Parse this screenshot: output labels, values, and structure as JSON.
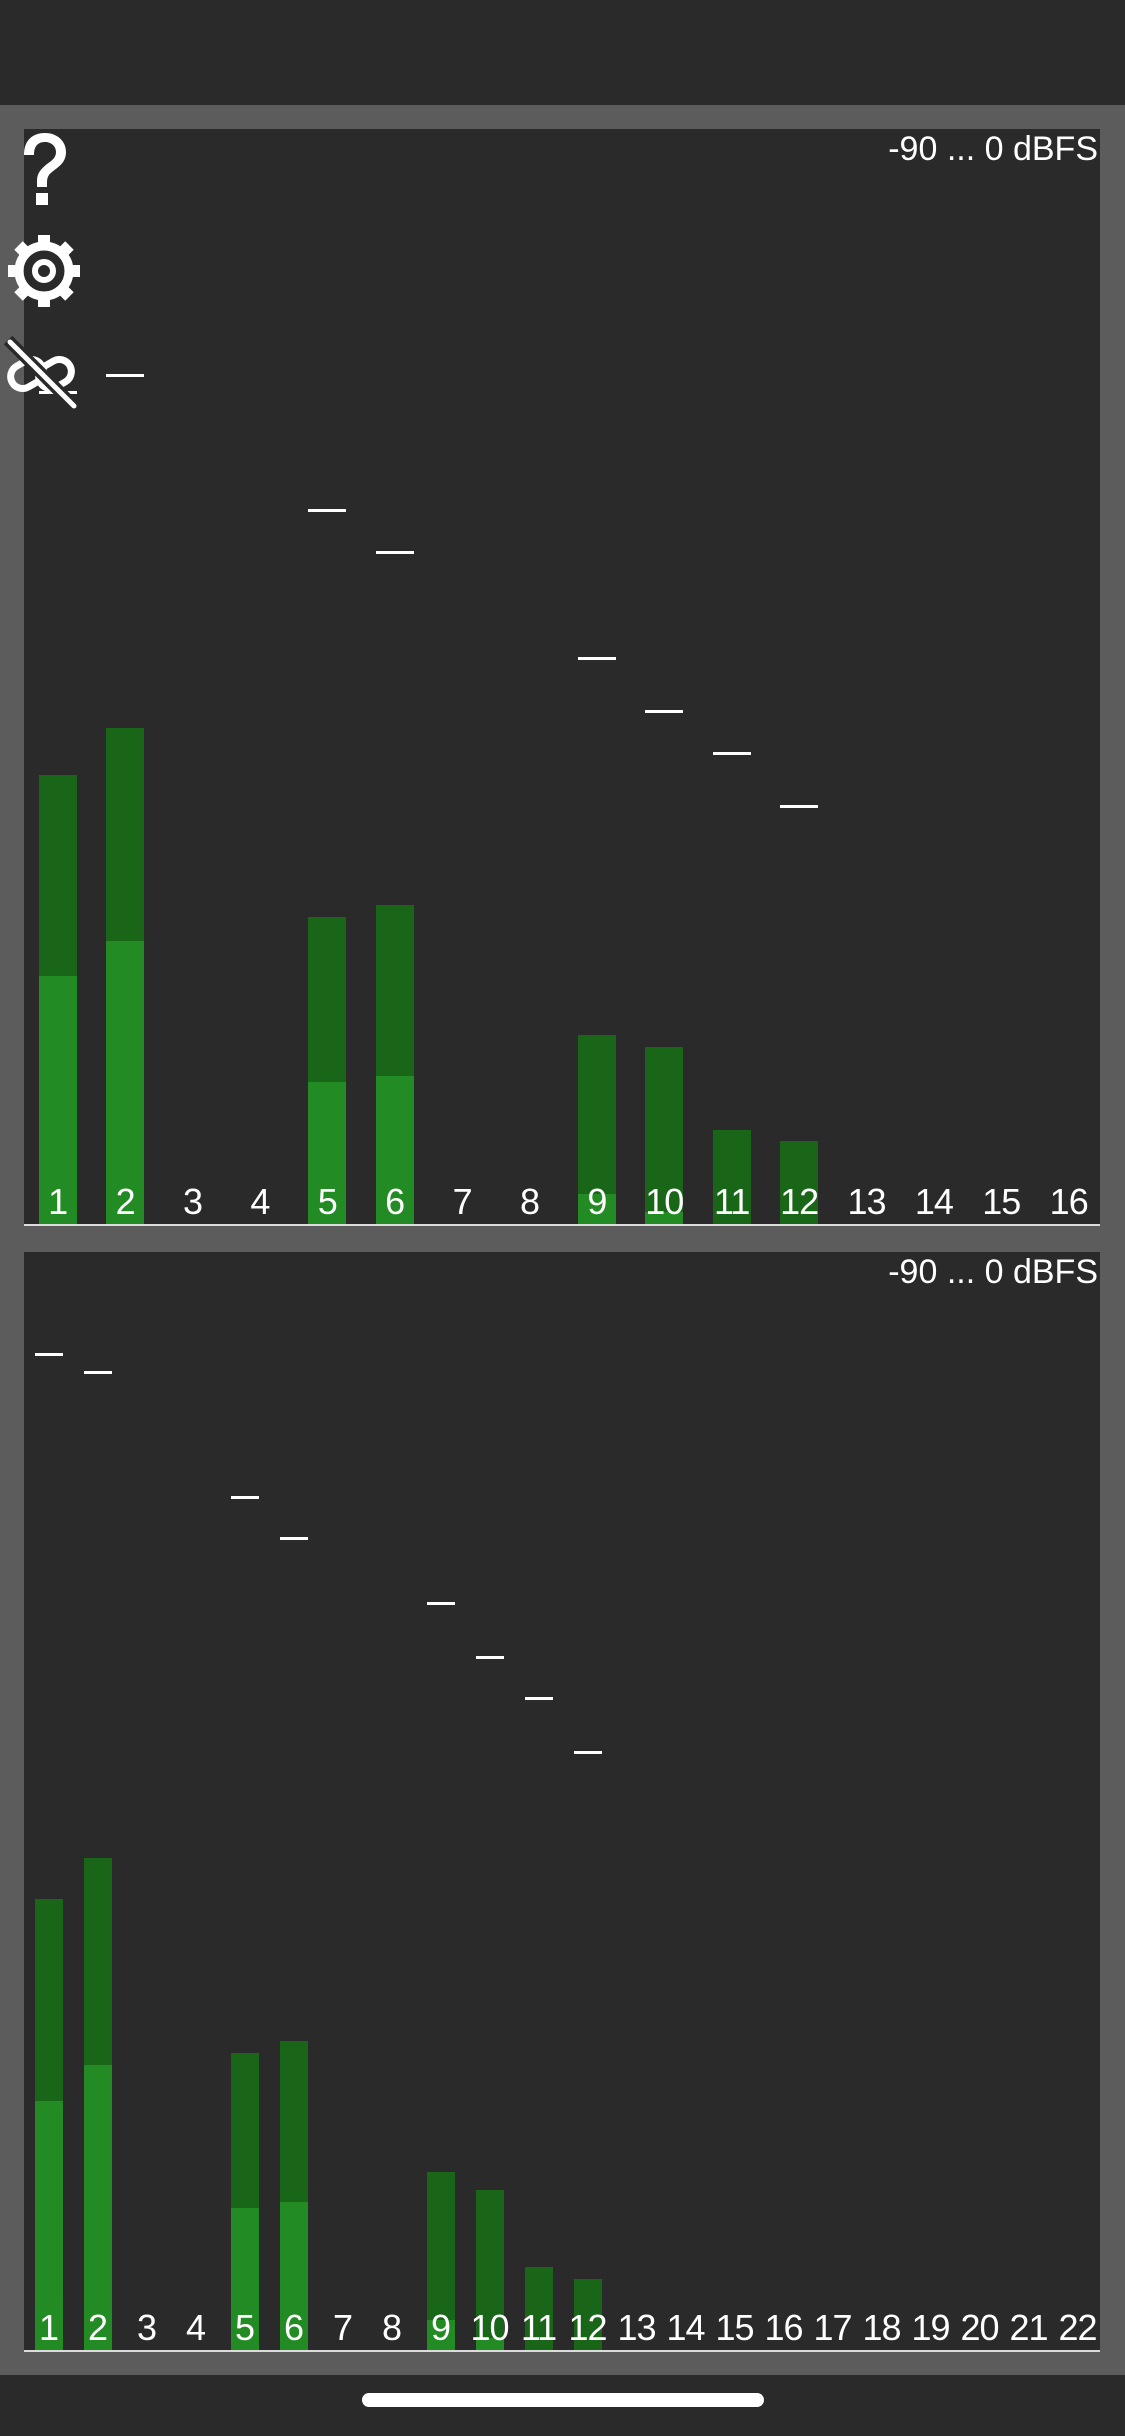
{
  "chart_data": [
    {
      "type": "bar",
      "range_label": "-90 ... 0 dBFS",
      "ylim": [
        -90,
        0
      ],
      "categories": [
        "1",
        "2",
        "3",
        "4",
        "5",
        "6",
        "7",
        "8",
        "9",
        "10",
        "11",
        "12",
        "13",
        "14",
        "15",
        "16"
      ],
      "series": [
        {
          "values": [
            -69,
            -66,
            null,
            null,
            -78,
            -77.5,
            null,
            null,
            -87.5,
            -89,
            null,
            null,
            null,
            null,
            null,
            null
          ]
        },
        {
          "values": [
            -52,
            -48,
            null,
            null,
            -64,
            -63,
            null,
            null,
            -74,
            -75,
            -82,
            -83,
            null,
            null,
            null,
            null
          ]
        },
        {
          "values": [
            -19.5,
            -18,
            null,
            null,
            -29.5,
            -33,
            null,
            null,
            -42,
            -46.5,
            -50,
            -54.5,
            null,
            null,
            null,
            null
          ]
        }
      ]
    },
    {
      "type": "bar",
      "range_label": "-90 ... 0 dBFS",
      "ylim": [
        -90,
        0
      ],
      "categories": [
        "1",
        "2",
        "3",
        "4",
        "5",
        "6",
        "7",
        "8",
        "9",
        "10",
        "11",
        "12",
        "13",
        "14",
        "15",
        "16",
        "17",
        "18",
        "19",
        "20",
        "21",
        "22"
      ],
      "series": [
        {
          "values": [
            -69,
            -66,
            null,
            null,
            -78,
            -77.5,
            null,
            null,
            -87.5,
            -89,
            null,
            null,
            null,
            null,
            null,
            null,
            null,
            null,
            null,
            null,
            null,
            null
          ]
        },
        {
          "values": [
            -52,
            -48.5,
            null,
            null,
            -65,
            -64,
            null,
            null,
            -75,
            -76.5,
            -83,
            -84,
            null,
            null,
            null,
            null,
            null,
            null,
            null,
            null,
            null,
            null
          ]
        },
        {
          "values": [
            -6,
            -7.5,
            null,
            null,
            -18,
            -21.5,
            null,
            null,
            -27,
            -31.5,
            -35,
            -39.5,
            null,
            null,
            null,
            null,
            null,
            null,
            null,
            null,
            null,
            null
          ]
        }
      ]
    }
  ],
  "icons": {
    "help": "question-mark-icon",
    "settings": "gear-icon",
    "link": "link-off-icon"
  },
  "colors": {
    "background": "#2a2a2a",
    "frame": "#5c5c5c",
    "rms": "#238b23",
    "peak": "#196619",
    "text": "#ffffff"
  }
}
